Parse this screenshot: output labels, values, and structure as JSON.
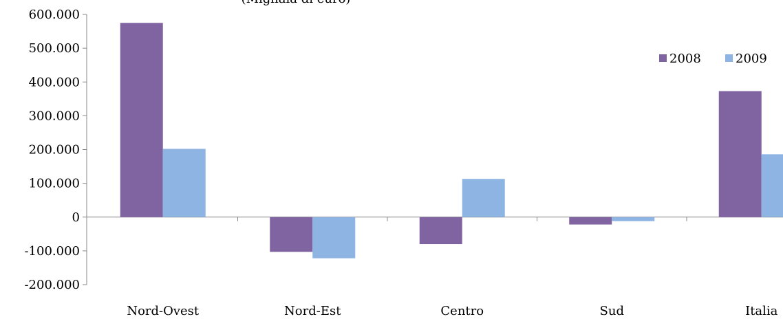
{
  "chart_data": {
    "type": "bar",
    "title": "(Migliaia di euro)",
    "categories": [
      "Nord-Ovest",
      "Nord-Est",
      "Centro",
      "Sud",
      "Italia"
    ],
    "series": [
      {
        "name": "2008",
        "color": "#8064A2",
        "values": [
          575000,
          -103000,
          -80000,
          -22000,
          373000
        ]
      },
      {
        "name": "2009",
        "color": "#8EB4E3",
        "values": [
          202000,
          -122000,
          113000,
          -12000,
          186000
        ]
      }
    ],
    "ylim": [
      -200000,
      600000
    ],
    "yticks": [
      "600.000",
      "500.000",
      "400.000",
      "300.000",
      "200.000",
      "100.000",
      "0",
      "-100.000",
      "-200.000"
    ],
    "ytick_values": [
      600000,
      500000,
      400000,
      300000,
      200000,
      100000,
      0,
      -100000,
      -200000
    ],
    "legend_position": "top-right",
    "grid": false,
    "xlabel": "",
    "ylabel": ""
  }
}
